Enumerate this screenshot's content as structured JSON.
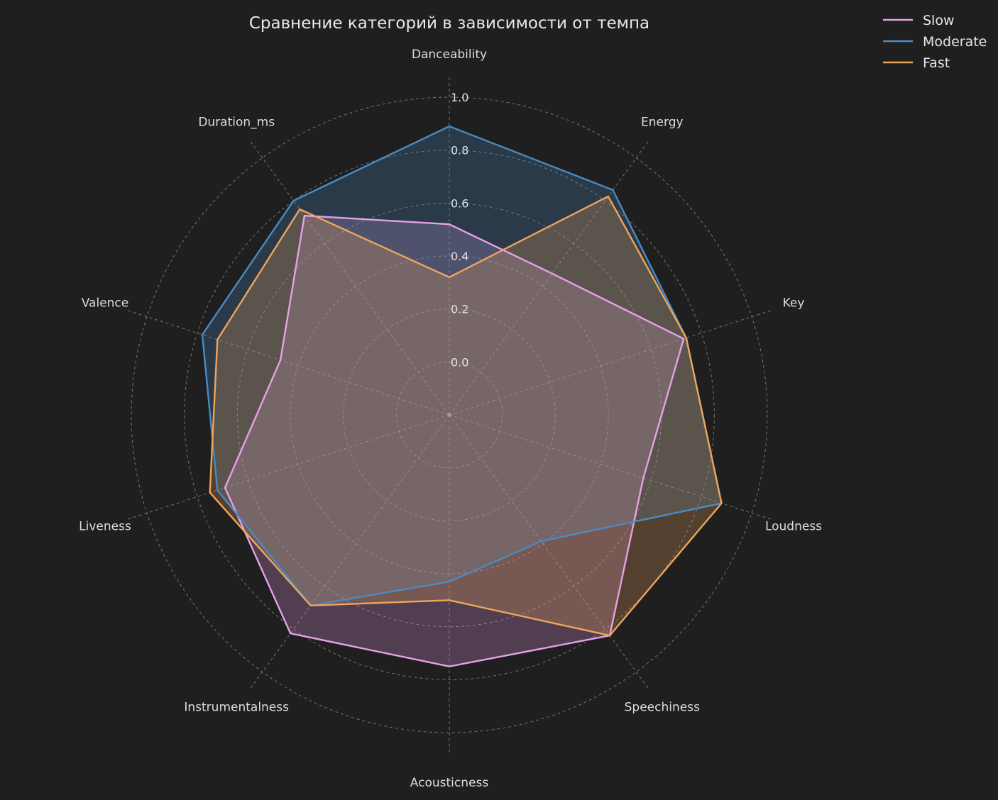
{
  "chart_data": {
    "type": "radar",
    "title": "Сравнение категорий в зависимости от темпа",
    "categories": [
      "Danceability",
      "Energy",
      "Key",
      "Loudness",
      "Speechiness",
      "Acousticness",
      "Instrumentalness",
      "Liveness",
      "Valence",
      "Duration_ms"
    ],
    "radial_ticks": [
      "0.0",
      "0.2",
      "0.4",
      "0.6",
      "0.8",
      "1.0"
    ],
    "rlim": [
      -0.2,
      1.0
    ],
    "grid": true,
    "legend_position": "top-right",
    "series": [
      {
        "name": "Slow",
        "color": "#e8a0e6",
        "values": [
          0.52,
          0.46,
          0.73,
          0.57,
          0.83,
          0.75,
          0.82,
          0.69,
          0.47,
          0.73
        ]
      },
      {
        "name": "Moderate",
        "color": "#4a8ac4",
        "values": [
          0.89,
          0.85,
          0.74,
          0.88,
          0.39,
          0.43,
          0.69,
          0.72,
          0.78,
          0.8
        ]
      },
      {
        "name": "Fast",
        "color": "#f0a45c",
        "values": [
          0.32,
          0.82,
          0.74,
          0.88,
          0.83,
          0.5,
          0.69,
          0.75,
          0.72,
          0.76
        ]
      }
    ]
  }
}
